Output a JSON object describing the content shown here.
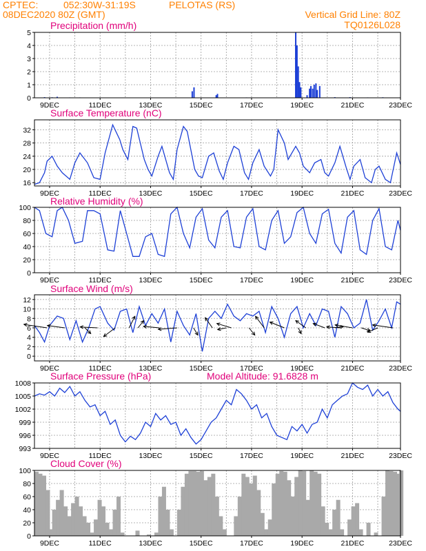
{
  "header": {
    "source": "CPTEC:",
    "coords": "052:30W-31:19S",
    "station": "PELOTAS (RS)",
    "run": "08DEC2020 80Z (GMT)",
    "grid_note": "Vertical Grid Line: 80Z",
    "model_code": "TQ0126L028"
  },
  "colors": {
    "header": "#ff8000",
    "panel_title": "#e0007a",
    "line": "#1c3fd6",
    "bars": "#1c3fd6",
    "cloud": "#a9a9a9",
    "arrow": "#000000"
  },
  "date_labels": [
    "9DEC",
    "11DEC",
    "13DEC",
    "15DEC",
    "17DEC",
    "19DEC",
    "21DEC",
    "23DEC"
  ],
  "chart_data": [
    {
      "id": "precip",
      "type": "bar",
      "title": "Precipitation (mm/h)",
      "x_days": [
        8.4,
        22.9
      ],
      "ylim": [
        0,
        5
      ],
      "yticks": [
        0,
        1,
        2,
        3,
        4,
        5
      ],
      "x": [
        8.8,
        9.1,
        9.3,
        9.8,
        10.2,
        14.65,
        14.72,
        15.6,
        15.65,
        16.8,
        18.75,
        18.8,
        18.85,
        18.9,
        18.95,
        19.2,
        19.3,
        19.35,
        19.42,
        19.48,
        19.55,
        19.6,
        19.7,
        20.3,
        20.9,
        21.6,
        22.2
      ],
      "values": [
        0.05,
        0.04,
        0.08,
        0.03,
        0.03,
        0.5,
        0.8,
        0.2,
        0.3,
        0.03,
        5.0,
        4.0,
        2.4,
        1.2,
        0.8,
        0.2,
        0.7,
        0.9,
        0.7,
        1.0,
        1.1,
        0.6,
        0.9,
        0.05,
        0.05,
        0.03,
        0.04
      ]
    },
    {
      "id": "temp",
      "type": "line",
      "title": "Surface Temperature (nC)",
      "x_days": [
        8.4,
        22.9
      ],
      "ylim": [
        15,
        35
      ],
      "yticks": [
        16,
        20,
        24,
        28,
        32
      ],
      "x": [
        8.4,
        8.6,
        8.8,
        8.9,
        9.1,
        9.3,
        9.5,
        9.8,
        10.0,
        10.2,
        10.5,
        10.75,
        11.0,
        11.2,
        11.5,
        11.78,
        11.9,
        12.1,
        12.3,
        12.45,
        12.75,
        12.9,
        13.05,
        13.3,
        13.45,
        13.75,
        13.9,
        14.05,
        14.3,
        14.45,
        14.75,
        14.9,
        15.05,
        15.3,
        15.5,
        15.72,
        15.88,
        16.05,
        16.3,
        16.5,
        16.72,
        16.88,
        17.05,
        17.3,
        17.5,
        17.75,
        17.88,
        18.05,
        18.3,
        18.45,
        18.75,
        18.9,
        19.05,
        19.3,
        19.5,
        19.75,
        19.9,
        20.05,
        20.3,
        20.5,
        20.75,
        20.9,
        21.05,
        21.3,
        21.5,
        21.75,
        21.9,
        22.05,
        22.3,
        22.5,
        22.75,
        22.9
      ],
      "values": [
        15.5,
        16.0,
        19.0,
        22.5,
        24.0,
        21.0,
        19.0,
        17.0,
        22.0,
        25.0,
        22.0,
        17.5,
        17.0,
        25.0,
        33.5,
        29.0,
        26.0,
        23.0,
        33.0,
        32.5,
        23.0,
        20.0,
        18.0,
        24.0,
        27.0,
        19.0,
        17.0,
        26.0,
        33.0,
        31.5,
        20.0,
        18.0,
        17.5,
        24.0,
        25.0,
        19.5,
        17.0,
        22.0,
        27.0,
        26.0,
        19.0,
        17.0,
        22.0,
        26.0,
        21.0,
        18.0,
        20.0,
        32.0,
        28.0,
        23.0,
        27.0,
        25.0,
        21.0,
        19.0,
        22.0,
        23.0,
        19.0,
        18.0,
        22.0,
        27.0,
        20.5,
        17.0,
        21.0,
        23.0,
        17.5,
        16.0,
        20.0,
        21.0,
        17.0,
        16.0,
        25.0,
        21.5
      ]
    },
    {
      "id": "rh",
      "type": "line",
      "title": "Relative Humidity (%)",
      "x_days": [
        8.4,
        22.9
      ],
      "ylim": [
        0,
        100
      ],
      "yticks": [
        0,
        20,
        40,
        60,
        80,
        100
      ],
      "x": [
        8.4,
        8.6,
        8.85,
        9.1,
        9.3,
        9.5,
        9.75,
        10.0,
        10.3,
        10.5,
        10.75,
        11.0,
        11.3,
        11.55,
        11.8,
        12.05,
        12.3,
        12.55,
        12.8,
        13.05,
        13.3,
        13.55,
        13.8,
        14.05,
        14.3,
        14.55,
        14.8,
        15.05,
        15.3,
        15.55,
        15.8,
        16.05,
        16.3,
        16.55,
        16.8,
        17.05,
        17.3,
        17.55,
        17.8,
        18.05,
        18.3,
        18.55,
        18.8,
        19.05,
        19.3,
        19.55,
        19.8,
        20.05,
        20.3,
        20.55,
        20.8,
        21.05,
        21.3,
        21.55,
        21.8,
        22.05,
        22.3,
        22.55,
        22.8,
        22.9
      ],
      "values": [
        100.0,
        95.0,
        60.0,
        55.0,
        95.0,
        100.0,
        80.0,
        45.0,
        48.0,
        95.0,
        95.0,
        90.0,
        35.0,
        33.0,
        95.0,
        60.0,
        25.0,
        25.0,
        55.0,
        60.0,
        28.0,
        25.0,
        90.0,
        100.0,
        60.0,
        38.0,
        85.0,
        98.0,
        50.0,
        38.0,
        85.0,
        95.0,
        40.0,
        38.0,
        85.0,
        98.0,
        40.0,
        35.0,
        80.0,
        95.0,
        45.0,
        55.0,
        92.0,
        100.0,
        60.0,
        45.0,
        90.0,
        97.0,
        45.0,
        30.0,
        85.0,
        95.0,
        35.0,
        28.0,
        80.0,
        98.0,
        40.0,
        35.0,
        80.0,
        65.0
      ]
    },
    {
      "id": "wind",
      "type": "line",
      "title": "Surface Wind (m/s)",
      "x_days": [
        8.4,
        22.9
      ],
      "ylim": [
        -1,
        13
      ],
      "yticks": [
        0,
        2,
        4,
        6,
        8,
        10,
        12
      ],
      "x": [
        8.4,
        8.6,
        8.8,
        9.0,
        9.3,
        9.55,
        9.8,
        10.05,
        10.3,
        10.55,
        10.8,
        11.0,
        11.3,
        11.55,
        11.8,
        12.05,
        12.3,
        12.55,
        12.8,
        13.05,
        13.3,
        13.55,
        13.8,
        14.05,
        14.3,
        14.55,
        14.8,
        15.05,
        15.3,
        15.55,
        15.8,
        16.05,
        16.3,
        16.55,
        16.8,
        17.05,
        17.3,
        17.55,
        17.8,
        18.05,
        18.3,
        18.55,
        18.8,
        19.05,
        19.3,
        19.55,
        19.8,
        20.05,
        20.3,
        20.55,
        20.8,
        21.05,
        21.3,
        21.55,
        21.8,
        22.05,
        22.3,
        22.55,
        22.75,
        22.9
      ],
      "values": [
        6.5,
        5.0,
        3.0,
        6.5,
        8.5,
        8.0,
        3.5,
        7.5,
        3.0,
        6.0,
        10.0,
        10.5,
        7.0,
        5.5,
        9.5,
        10.0,
        5.0,
        10.5,
        6.5,
        9.0,
        7.0,
        10.0,
        3.0,
        9.5,
        6.5,
        4.5,
        9.0,
        1.0,
        8.0,
        9.5,
        8.0,
        11.0,
        8.5,
        7.5,
        9.0,
        8.5,
        9.5,
        5.0,
        10.5,
        8.0,
        4.0,
        9.0,
        10.5,
        6.0,
        9.0,
        6.5,
        10.0,
        9.5,
        4.0,
        10.5,
        9.0,
        6.0,
        7.0,
        12.0,
        5.5,
        7.5,
        10.0,
        6.0,
        11.5,
        11.0
      ],
      "vectors": [
        {
          "x": 8.9,
          "u": -8.0,
          "v": 1.2
        },
        {
          "x": 9.6,
          "u": -6.0,
          "v": 0.8
        },
        {
          "x": 10.4,
          "u": 2.0,
          "v": -2.0
        },
        {
          "x": 10.9,
          "u": -6.0,
          "v": 0.3
        },
        {
          "x": 11.6,
          "u": -4.0,
          "v": -3.0
        },
        {
          "x": 12.15,
          "u": 2.0,
          "v": 4.0
        },
        {
          "x": 12.5,
          "u": 2.0,
          "v": 2.5
        },
        {
          "x": 13.35,
          "u": -5.5,
          "v": 0.5
        },
        {
          "x": 14.05,
          "u": -6.5,
          "v": -0.5
        },
        {
          "x": 14.7,
          "u": 1.5,
          "v": -2.5
        },
        {
          "x": 15.45,
          "u": -2.5,
          "v": 3.5
        },
        {
          "x": 16.0,
          "u": -3.0,
          "v": -0.6
        },
        {
          "x": 16.2,
          "u": -5.0,
          "v": 1.5
        },
        {
          "x": 16.9,
          "u": 2.0,
          "v": -2.5
        },
        {
          "x": 17.5,
          "u": -3.0,
          "v": 4.0
        },
        {
          "x": 18.3,
          "u": -5.0,
          "v": 2.0
        },
        {
          "x": 18.85,
          "u": 1.0,
          "v": -2.0
        },
        {
          "x": 19.15,
          "u": -3.5,
          "v": 2.5
        },
        {
          "x": 19.9,
          "u": -4.0,
          "v": 1.5
        },
        {
          "x": 20.3,
          "u": 3.0,
          "v": 0.5
        },
        {
          "x": 20.55,
          "u": -5.0,
          "v": 0.3
        },
        {
          "x": 21.0,
          "u": -6.0,
          "v": 1.0
        },
        {
          "x": 21.35,
          "u": 3.0,
          "v": -1.0
        },
        {
          "x": 22.0,
          "u": -3.5,
          "v": -1.5
        },
        {
          "x": 22.6,
          "u": -7.0,
          "v": 1.0
        }
      ]
    },
    {
      "id": "pres",
      "type": "line",
      "title": "Surface Pressure (hPa)",
      "annotation": "Model Altitude: 91.6828 m",
      "x_days": [
        8.4,
        22.9
      ],
      "ylim": [
        993,
        1008
      ],
      "yticks": [
        993,
        996,
        999,
        1002,
        1005,
        1008
      ],
      "x": [
        8.4,
        8.6,
        8.8,
        9.0,
        9.2,
        9.4,
        9.6,
        9.8,
        10.0,
        10.2,
        10.4,
        10.6,
        10.8,
        11.0,
        11.2,
        11.4,
        11.6,
        11.8,
        12.0,
        12.2,
        12.4,
        12.6,
        12.8,
        13.0,
        13.2,
        13.4,
        13.6,
        13.8,
        14.0,
        14.2,
        14.4,
        14.6,
        14.8,
        15.0,
        15.2,
        15.4,
        15.6,
        15.8,
        16.0,
        16.2,
        16.4,
        16.6,
        16.8,
        17.0,
        17.2,
        17.4,
        17.6,
        17.8,
        18.0,
        18.2,
        18.4,
        18.6,
        18.8,
        19.0,
        19.2,
        19.4,
        19.6,
        19.8,
        20.0,
        20.2,
        20.4,
        20.6,
        20.8,
        21.0,
        21.2,
        21.4,
        21.6,
        21.8,
        22.0,
        22.2,
        22.4,
        22.6,
        22.8,
        22.9
      ],
      "values": [
        1005.0,
        1005.5,
        1005.2,
        1006.0,
        1005.0,
        1006.8,
        1005.8,
        1007.2,
        1005.0,
        1006.0,
        1004.0,
        1002.5,
        1003.0,
        1000.5,
        1001.5,
        998.5,
        999.5,
        996.0,
        994.5,
        995.8,
        995.0,
        996.5,
        999.0,
        998.0,
        1001.0,
        999.5,
        1000.5,
        998.5,
        999.0,
        996.0,
        997.5,
        995.5,
        994.0,
        995.0,
        997.0,
        999.0,
        1000.0,
        1002.0,
        1004.0,
        1003.0,
        1006.5,
        1005.5,
        1004.0,
        1002.0,
        1003.0,
        1000.0,
        1001.0,
        998.0,
        996.0,
        995.5,
        995.0,
        998.0,
        997.0,
        998.5,
        996.5,
        998.5,
        999.0,
        1002.0,
        1000.0,
        1003.0,
        1004.0,
        1005.0,
        1005.5,
        1008.0,
        1007.0,
        1006.5,
        1007.5,
        1005.0,
        1006.5,
        1005.0,
        1006.0,
        1003.5,
        1002.0,
        1001.5
      ]
    },
    {
      "id": "cloud",
      "type": "bar",
      "title": "Cloud Cover (%)",
      "x_days": [
        8.4,
        22.9
      ],
      "ylim": [
        0,
        100
      ],
      "yticks": [
        0,
        20,
        40,
        60,
        80,
        100
      ],
      "x": [
        8.4,
        8.55,
        8.7,
        8.85,
        8.95,
        9.1,
        9.25,
        9.4,
        9.55,
        9.7,
        9.85,
        10.0,
        10.15,
        10.3,
        10.45,
        10.6,
        10.75,
        10.9,
        11.05,
        11.2,
        11.35,
        11.5,
        11.65,
        11.8,
        11.95,
        12.1,
        12.25,
        12.4,
        12.55,
        12.7,
        12.85,
        13.0,
        13.15,
        13.3,
        13.45,
        13.6,
        13.75,
        13.9,
        14.05,
        14.2,
        14.35,
        14.5,
        14.65,
        14.8,
        14.95,
        15.1,
        15.25,
        15.4,
        15.55,
        15.7,
        15.85,
        16.0,
        16.15,
        16.3,
        16.45,
        16.6,
        16.75,
        16.9,
        17.05,
        17.2,
        17.35,
        17.5,
        17.65,
        17.8,
        17.95,
        18.1,
        18.25,
        18.4,
        18.55,
        18.7,
        18.85,
        19.0,
        19.15,
        19.3,
        19.45,
        19.6,
        19.75,
        19.9,
        20.05,
        20.2,
        20.35,
        20.5,
        20.65,
        20.8,
        20.95,
        21.1,
        21.25,
        21.4,
        21.55,
        21.7,
        21.85,
        22.0,
        22.15,
        22.3,
        22.45,
        22.6,
        22.75,
        22.85
      ],
      "values": [
        98,
        95,
        92,
        70,
        10,
        40,
        55,
        70,
        45,
        30,
        50,
        60,
        45,
        30,
        20,
        5,
        25,
        55,
        45,
        20,
        10,
        40,
        60,
        5,
        0,
        0,
        0,
        8,
        0,
        0,
        2,
        0,
        5,
        60,
        75,
        40,
        10,
        0,
        40,
        75,
        95,
        99,
        99,
        98,
        99,
        85,
        90,
        95,
        60,
        30,
        10,
        0,
        0,
        30,
        60,
        95,
        90,
        80,
        92,
        70,
        35,
        10,
        25,
        80,
        95,
        99,
        98,
        85,
        60,
        90,
        100,
        99,
        55,
        100,
        98,
        95,
        45,
        20,
        10,
        40,
        55,
        10,
        0,
        25,
        45,
        50,
        10,
        0,
        20,
        0,
        5,
        0,
        60,
        100,
        99,
        98,
        95,
        100
      ]
    }
  ]
}
